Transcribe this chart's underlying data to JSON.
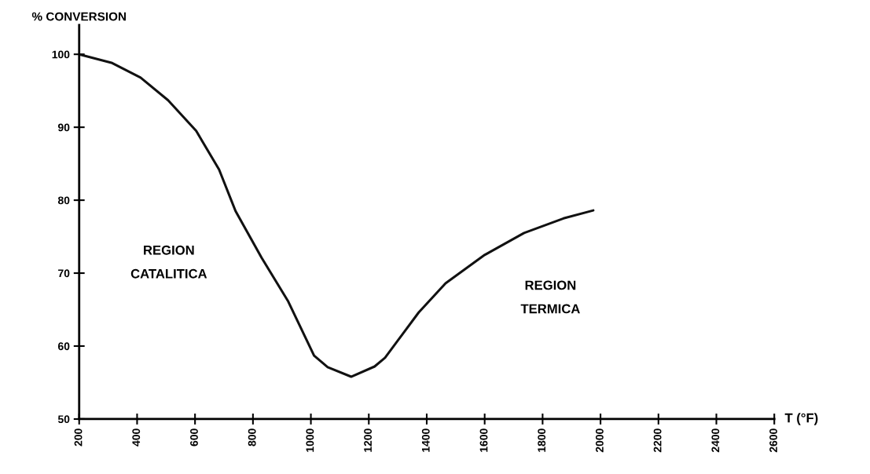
{
  "chart_data": {
    "type": "line",
    "xlabel": "T (°F)",
    "ylabel": "% CONVERSION",
    "x": [
      200,
      314,
      412,
      507,
      604,
      683,
      740,
      830,
      922,
      1011,
      1058,
      1139,
      1220,
      1256,
      1372,
      1465,
      1600,
      1736,
      1872,
      1975
    ],
    "series": [
      {
        "color": "#111111",
        "values": [
          100,
          98.8,
          96.8,
          93.7,
          89.5,
          84.2,
          78.5,
          72.1,
          66.1,
          58.7,
          57.1,
          55.8,
          57.2,
          58.4,
          64.6,
          68.6,
          72.5,
          75.5,
          77.5,
          78.6
        ]
      }
    ],
    "xlim": [
      200,
      2600
    ],
    "xticks": [
      200,
      400,
      600,
      800,
      1000,
      1200,
      1400,
      1600,
      1800,
      2000,
      2200,
      2400,
      2600
    ],
    "ylim": [
      50,
      104
    ],
    "yticks": [
      50,
      60,
      70,
      80,
      90,
      100
    ],
    "annotations": [
      "REGION\nCATALITICA",
      "REGION\nTERMICA"
    ],
    "grid": false,
    "legend": false,
    "marker": "none",
    "line_style": "solid"
  }
}
